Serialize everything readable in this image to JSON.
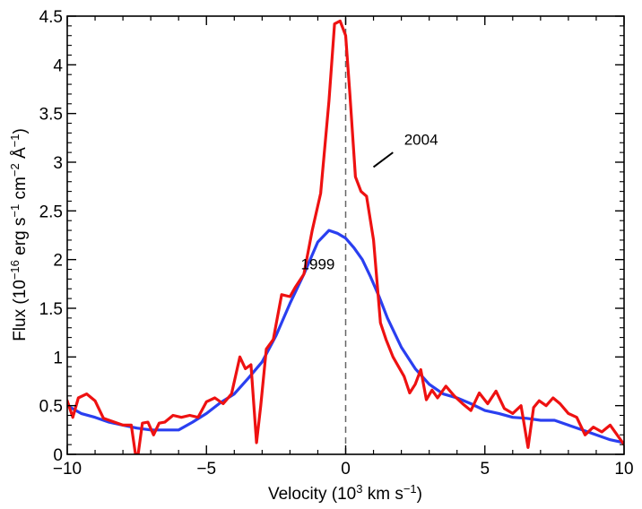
{
  "chart_data": {
    "type": "line",
    "title": "",
    "xlabel": {
      "prefix": "Velocity (10",
      "exp": "3",
      "suffix": "  km s",
      "exp2": "−1",
      "close": ")"
    },
    "ylabel": {
      "p1": "Flux (10",
      "e1": "−16",
      "p2": " erg s",
      "e2": "−1",
      "p3": " cm",
      "e3": "−2",
      "p4": " Å",
      "e4": "−1",
      "p5": ")"
    },
    "xlim": [
      -10,
      10
    ],
    "ylim": [
      0,
      4.5
    ],
    "xticks": [
      -10,
      -5,
      0,
      5,
      10
    ],
    "xtick_labels": [
      "−10",
      "−5",
      "0",
      "5",
      "10"
    ],
    "yticks": [
      0,
      0.5,
      1,
      1.5,
      2,
      2.5,
      3,
      3.5,
      4,
      4.5
    ],
    "ytick_labels": [
      "0",
      "0.5",
      "1",
      "1.5",
      "2",
      "2.5",
      "3",
      "3.5",
      "4",
      "4.5"
    ],
    "reference_line": {
      "x": 0,
      "style": "dashed"
    },
    "annotations": [
      {
        "text": "2004",
        "x": 2.1,
        "y": 3.18,
        "pointer": [
          [
            1.0,
            2.95
          ],
          [
            1.7,
            3.1
          ]
        ]
      },
      {
        "text": "1999",
        "x": -1.0,
        "y": 1.9
      }
    ],
    "series": [
      {
        "name": "2004",
        "color": "#ee1111",
        "x": [
          -10.0,
          -9.8,
          -9.6,
          -9.3,
          -9.0,
          -8.7,
          -8.3,
          -8.0,
          -7.7,
          -7.55,
          -7.45,
          -7.3,
          -7.1,
          -6.9,
          -6.7,
          -6.5,
          -6.2,
          -5.9,
          -5.6,
          -5.3,
          -5.0,
          -4.7,
          -4.4,
          -4.1,
          -3.8,
          -3.6,
          -3.4,
          -3.2,
          -3.05,
          -2.85,
          -2.6,
          -2.3,
          -2.0,
          -1.8,
          -1.5,
          -1.2,
          -0.9,
          -0.6,
          -0.4,
          -0.2,
          0.0,
          0.15,
          0.35,
          0.55,
          0.75,
          1.0,
          1.25,
          1.45,
          1.7,
          1.9,
          2.1,
          2.3,
          2.5,
          2.7,
          2.9,
          3.1,
          3.3,
          3.6,
          3.9,
          4.2,
          4.5,
          4.8,
          5.1,
          5.4,
          5.7,
          6.0,
          6.3,
          6.55,
          6.75,
          6.95,
          7.2,
          7.45,
          7.7,
          8.0,
          8.3,
          8.6,
          8.9,
          9.2,
          9.5,
          9.8,
          10.0
        ],
        "y": [
          0.55,
          0.38,
          0.58,
          0.62,
          0.55,
          0.37,
          0.33,
          0.3,
          0.3,
          0.0,
          0.01,
          0.32,
          0.33,
          0.2,
          0.32,
          0.33,
          0.4,
          0.38,
          0.4,
          0.38,
          0.54,
          0.58,
          0.52,
          0.62,
          1.0,
          0.88,
          0.92,
          0.12,
          0.5,
          1.08,
          1.18,
          1.64,
          1.62,
          1.72,
          1.85,
          2.3,
          2.68,
          3.63,
          4.42,
          4.45,
          4.3,
          3.7,
          2.85,
          2.7,
          2.65,
          2.2,
          1.35,
          1.18,
          1.0,
          0.9,
          0.8,
          0.63,
          0.72,
          0.87,
          0.56,
          0.66,
          0.58,
          0.7,
          0.6,
          0.52,
          0.45,
          0.63,
          0.52,
          0.65,
          0.47,
          0.42,
          0.5,
          0.07,
          0.48,
          0.55,
          0.5,
          0.58,
          0.52,
          0.42,
          0.38,
          0.2,
          0.28,
          0.23,
          0.3,
          0.18,
          0.1
        ]
      },
      {
        "name": "1999",
        "color": "#2a3ff0",
        "x": [
          -10.0,
          -9.5,
          -9.0,
          -8.5,
          -8.0,
          -7.5,
          -7.0,
          -6.5,
          -6.0,
          -5.5,
          -5.0,
          -4.5,
          -4.0,
          -3.5,
          -3.0,
          -2.5,
          -2.0,
          -1.5,
          -1.0,
          -0.6,
          -0.3,
          0.0,
          0.3,
          0.6,
          0.9,
          1.2,
          1.5,
          2.0,
          2.5,
          3.0,
          3.5,
          4.0,
          4.5,
          5.0,
          5.5,
          6.0,
          6.5,
          7.0,
          7.5,
          8.0,
          8.5,
          9.0,
          9.5,
          10.0
        ],
        "y": [
          0.5,
          0.42,
          0.38,
          0.33,
          0.3,
          0.27,
          0.25,
          0.25,
          0.25,
          0.33,
          0.42,
          0.53,
          0.62,
          0.78,
          0.95,
          1.22,
          1.55,
          1.85,
          2.18,
          2.3,
          2.27,
          2.22,
          2.12,
          2.0,
          1.82,
          1.62,
          1.4,
          1.1,
          0.88,
          0.72,
          0.62,
          0.58,
          0.52,
          0.45,
          0.42,
          0.38,
          0.37,
          0.35,
          0.35,
          0.3,
          0.25,
          0.2,
          0.15,
          0.12
        ]
      }
    ]
  }
}
